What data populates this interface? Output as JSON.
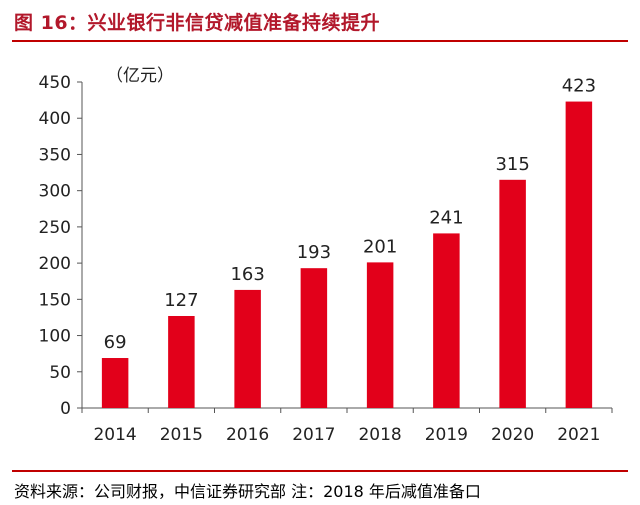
{
  "title": "图 16：兴业银行非信贷减值准备持续提升",
  "source": "资料来源：公司财报，中信证券研究部    注：2018 年后减值准备口",
  "colors": {
    "title": "#b2182b",
    "bar": "#e2001a",
    "rule": "#c00000"
  },
  "chart_data": {
    "type": "bar",
    "unit_label": "（亿元）",
    "categories": [
      "2014",
      "2015",
      "2016",
      "2017",
      "2018",
      "2019",
      "2020",
      "2021"
    ],
    "values": [
      69,
      127,
      163,
      193,
      201,
      241,
      315,
      423
    ],
    "data_labels": [
      "69",
      "127",
      "163",
      "193",
      "201",
      "241",
      "315",
      "423"
    ],
    "yticks": [
      0,
      50,
      100,
      150,
      200,
      250,
      300,
      350,
      400,
      450
    ],
    "ylim": [
      0,
      450
    ],
    "grid": false,
    "legend": "none"
  }
}
